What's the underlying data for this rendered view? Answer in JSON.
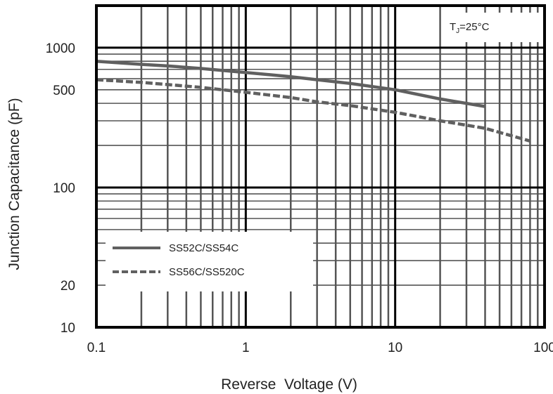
{
  "chart_data": {
    "type": "line",
    "x_scale": "log",
    "y_scale": "log",
    "xlabel": "Reverse  Voltage (V)",
    "ylabel": "Junction Capacitance (pF)",
    "xlim": [
      0.1,
      100
    ],
    "ylim": [
      10,
      2000
    ],
    "x_ticks": [
      {
        "value": 0.1,
        "label": "0.1"
      },
      {
        "value": 1,
        "label": "1"
      },
      {
        "value": 10,
        "label": "10"
      },
      {
        "value": 100,
        "label": "100"
      }
    ],
    "y_ticks": [
      {
        "value": 10,
        "label": "10"
      },
      {
        "value": 20,
        "label": "20"
      },
      {
        "value": 100,
        "label": "100"
      },
      {
        "value": 500,
        "label": "500"
      },
      {
        "value": 1000,
        "label": "1000"
      }
    ],
    "grid": true,
    "annotation": {
      "prefix": "T",
      "subscript": "J",
      "suffix": "=25°C"
    },
    "legend_position": "bottom-left",
    "series": [
      {
        "name": "SS52C/SS54C",
        "style": "solid",
        "color": "#606060",
        "x": [
          0.1,
          0.2,
          0.3,
          0.5,
          1,
          2,
          3,
          5,
          10,
          20,
          40
        ],
        "y": [
          800,
          760,
          740,
          710,
          665,
          620,
          590,
          555,
          500,
          430,
          380
        ]
      },
      {
        "name": "SS56C/SS520C",
        "style": "dashed",
        "color": "#606060",
        "x": [
          0.1,
          0.2,
          0.3,
          0.5,
          1,
          2,
          3,
          5,
          10,
          20,
          40,
          80
        ],
        "y": [
          590,
          565,
          545,
          520,
          480,
          440,
          410,
          385,
          345,
          300,
          265,
          215
        ]
      }
    ]
  }
}
